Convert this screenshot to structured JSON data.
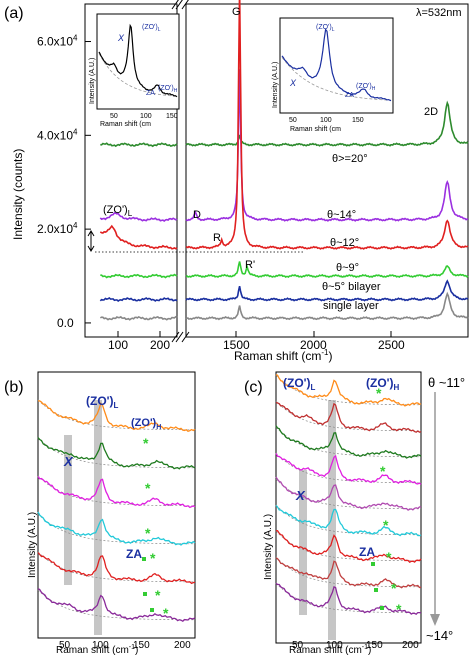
{
  "figure": {
    "panel_a": {
      "label": "(a)",
      "ylabel": "Intensity (counts)",
      "xlabel": "Raman shift (cm",
      "xlabel_sup": "-1",
      "xlabel_tail": ")",
      "y_ticks": [
        {
          "value": 0.0,
          "label": "0.0"
        },
        {
          "value": 20000,
          "label": "2.0x10",
          "sup": "4"
        },
        {
          "value": 40000,
          "label": "4.0x10",
          "sup": "4"
        },
        {
          "value": 60000,
          "label": "6.0x10",
          "sup": "4"
        }
      ],
      "x_ticks_left": [
        "100",
        "200"
      ],
      "x_ticks_right": [
        "1500",
        "2000",
        "2500"
      ],
      "laser": "λ=532nm",
      "peak_labels": {
        "G": "G",
        "D2": "2D",
        "D": "D",
        "R": "R",
        "Rp": "R'",
        "ZO": "(ZO')",
        "ZO_sub": "L"
      },
      "traces": [
        {
          "name": "θ>=20°",
          "color": "#2e8b2e"
        },
        {
          "name": "θ~14°",
          "color": "#9b30e0"
        },
        {
          "name": "θ~12°",
          "color": "#e02020"
        },
        {
          "name": "θ~9°",
          "color": "#33cc33"
        },
        {
          "name": "θ~5° bilayer",
          "color": "#1a2fa0"
        },
        {
          "name": "single layer",
          "color": "#888888"
        }
      ],
      "insets": {
        "left": {
          "ylabel": "Intensity (A.U.)",
          "xlabel": "Raman shift (cm",
          "xticks": [
            "50",
            "100",
            "150"
          ],
          "X": "X",
          "ZA": "ZA",
          "ZO_L": "(ZO')",
          "ZO_L_sub": "L",
          "ZO_H": "(ZO')",
          "ZO_H_sub": "H"
        },
        "right": {
          "ylabel": "Intensity (A.U.)",
          "xlabel": "Raman shift (cm",
          "xticks": [
            "50",
            "100",
            "150"
          ],
          "X": "X",
          "ZA": "ZA",
          "ZO_L": "(ZO')",
          "ZO_L_sub": "L",
          "ZO_H": "(ZO')",
          "ZO_H_sub": "H"
        }
      }
    },
    "panel_b": {
      "label": "(b)",
      "ylabel": "Intensity (A.U.)",
      "xlabel": "Raman shift (cm",
      "xticks": [
        "50",
        "100",
        "150",
        "200"
      ],
      "ZO_L": "(ZO')",
      "ZO_L_sub": "L",
      "ZO_H": "(ZO')",
      "ZO_H_sub": "H",
      "X": "X",
      "ZA": "ZA",
      "colors": [
        "#ff8c1a",
        "#1e7a1e",
        "#e020e0",
        "#22c9d9",
        "#e02020",
        "#8a2a9a"
      ]
    },
    "panel_c": {
      "label": "(c)",
      "ylabel": "Intensity (A.U.)",
      "xlabel": "Raman shift (cm",
      "xticks": [
        "50",
        "100",
        "150",
        "200"
      ],
      "ZO_L": "(ZO')",
      "ZO_L_sub": "L",
      "ZO_H": "(ZO')",
      "ZO_H_sub": "H",
      "X": "X",
      "ZA": "ZA",
      "theta_top": "θ ~11°",
      "theta_bottom": "~14°",
      "colors": [
        "#ff8c1a",
        "#c03030",
        "#1e7a1e",
        "#e020e0",
        "#b04ab0",
        "#22c9d9",
        "#e02020",
        "#c04040",
        "#8a2a9a"
      ]
    }
  },
  "chart_data": [
    {
      "type": "line",
      "panel": "(a)",
      "xlabel": "Raman shift (cm-1)",
      "ylabel": "Intensity (counts)",
      "ylim": [
        -3000,
        68000
      ],
      "x_break": [
        200,
        1300
      ],
      "series": [
        {
          "name": "θ>=20°",
          "baseline": 38000,
          "peaks": [
            {
              "x": 1585,
              "height": 2000
            },
            {
              "x": 2690,
              "height": 9000
            }
          ]
        },
        {
          "name": "θ~14°",
          "baseline": 22000,
          "peaks": [
            {
              "x": 1350,
              "height": 1500
            },
            {
              "x": 1585,
              "height": 32000
            },
            {
              "x": 2690,
              "height": 8000
            }
          ]
        },
        {
          "name": "θ~12°",
          "baseline": 16000,
          "peaks": [
            {
              "x": 95,
              "height": 3000
            },
            {
              "x": 1490,
              "height": 1500
            },
            {
              "x": 1585,
              "height": 56000
            },
            {
              "x": 2690,
              "height": 6000
            }
          ]
        },
        {
          "name": "θ~9°",
          "baseline": 10000,
          "peaks": [
            {
              "x": 1585,
              "height": 3000
            },
            {
              "x": 1625,
              "height": 2000
            },
            {
              "x": 2690,
              "height": 2000
            }
          ]
        },
        {
          "name": "θ~5° bilayer",
          "baseline": 5000,
          "peaks": [
            {
              "x": 1585,
              "height": 3000
            },
            {
              "x": 2690,
              "height": 4000
            }
          ]
        },
        {
          "name": "single layer",
          "baseline": 1000,
          "peaks": [
            {
              "x": 1585,
              "height": 2500
            },
            {
              "x": 2690,
              "height": 5000
            }
          ]
        }
      ]
    },
    {
      "type": "line",
      "panel": "(b)",
      "xlabel": "Raman shift (cm-1)",
      "ylabel": "Intensity (A.U.)",
      "xlim": [
        20,
        200
      ],
      "traces": 6,
      "peaks": {
        "X": 55,
        "ZO_L": 93,
        "ZA": 150,
        "ZO_H": 160
      }
    },
    {
      "type": "line",
      "panel": "(c)",
      "xlabel": "Raman shift (cm-1)",
      "ylabel": "Intensity (A.U.)",
      "xlim": [
        20,
        200
      ],
      "theta_range": [
        "θ ~11°",
        "~14°"
      ],
      "traces": 9,
      "peaks": {
        "X": 55,
        "ZO_L": 93,
        "ZA": 150,
        "ZO_H": 160
      }
    }
  ]
}
